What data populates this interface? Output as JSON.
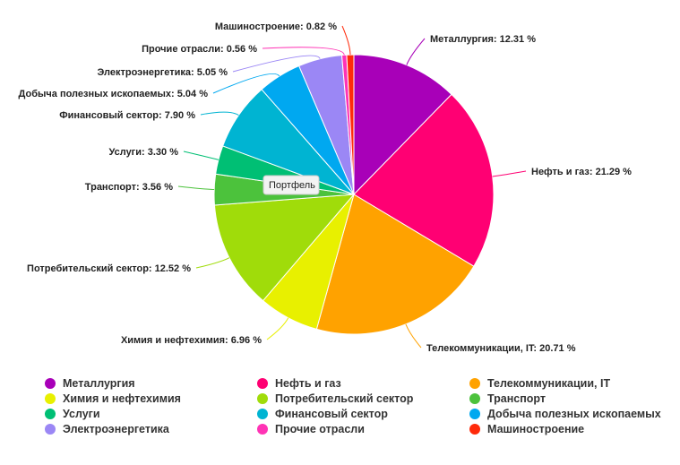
{
  "chart_data": {
    "type": "pie",
    "title": "",
    "tooltip": "Портфель",
    "legend_position": "bottom",
    "slices": [
      {
        "name": "Металлургия",
        "value": 12.31,
        "label": "Металлургия: 12.31 %",
        "color": "#a800b8"
      },
      {
        "name": "Нефть и газ",
        "value": 21.29,
        "label": "Нефть и газ: 21.29 %",
        "color": "#ff0073"
      },
      {
        "name": "Телекоммуникации, IT",
        "value": 20.71,
        "label": "Телекоммуникации, IT: 20.71 %",
        "color": "#ffa200"
      },
      {
        "name": "Химия и нефтехимия",
        "value": 6.96,
        "label": "Химия и нефтехимия: 6.96 %",
        "color": "#e8f000"
      },
      {
        "name": "Потребительский сектор",
        "value": 12.52,
        "label": "Потребительский сектор: 12.52 %",
        "color": "#a0dc0a"
      },
      {
        "name": "Транспорт",
        "value": 3.56,
        "label": "Транспорт: 3.56 %",
        "color": "#4cc23c"
      },
      {
        "name": "Услуги",
        "value": 3.3,
        "label": "Услуги: 3.30 %",
        "color": "#00bf74"
      },
      {
        "name": "Финансовый сектор",
        "value": 7.9,
        "label": "Финансовый сектор: 7.90 %",
        "color": "#00b4d2"
      },
      {
        "name": "Добыча полезных ископаемых",
        "value": 5.04,
        "label": "Добыча полезных ископаемых: 5.04 %",
        "color": "#00a8f0"
      },
      {
        "name": "Электроэнергетика",
        "value": 5.05,
        "label": "Электроэнергетика: 5.05 %",
        "color": "#9b87f5"
      },
      {
        "name": "Прочие отрасли",
        "value": 0.56,
        "label": "Прочие отрасли: 0.56 %",
        "color": "#ff33b5"
      },
      {
        "name": "Машиностроение",
        "value": 0.82,
        "label": "Машиностроение: 0.82 %",
        "color": "#ff2a0a"
      }
    ]
  }
}
